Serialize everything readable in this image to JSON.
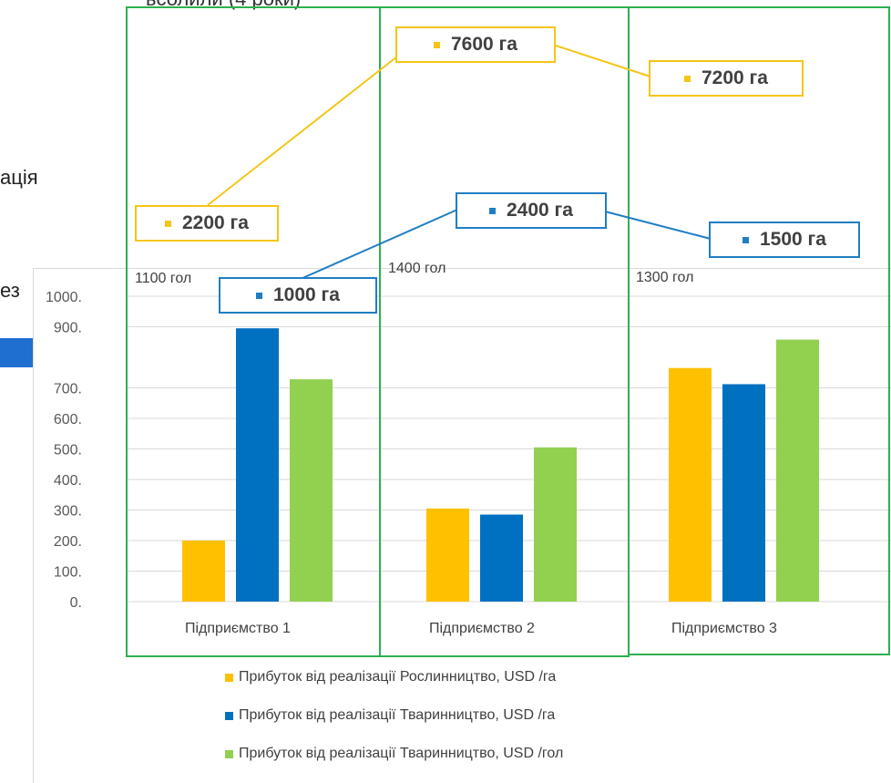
{
  "header": {
    "cut_title": "ьсолили (4 роки)"
  },
  "background": {
    "fragment_1": "ація",
    "fragment_2": "ез"
  },
  "colors": {
    "yellow": "#ffc000",
    "blue": "#0070c0",
    "green": "#92d050",
    "frame": "#2db04f",
    "callout_yellow": "#f5c518",
    "callout_blue": "#1f7ec2"
  },
  "chart_data": {
    "type": "bar",
    "categories": [
      "Підприємство 1",
      "Підприємство 2",
      "Підприємство 3"
    ],
    "series": [
      {
        "name": "Прибуток від реалізації Рослинництво, USD /га",
        "values": [
          200,
          305,
          765
        ]
      },
      {
        "name": "Прибуток від реалізації  Тваринництво, USD /га",
        "values": [
          895,
          285,
          712
        ]
      },
      {
        "name": "Прибуток від реалізації  Тваринництво, USD /гол",
        "values": [
          728,
          505,
          858
        ]
      }
    ],
    "y_tick_labels": [
      "1000.",
      "900.",
      "700.",
      "600.",
      "500.",
      "400.",
      "300.",
      "200.",
      "100.",
      "0."
    ],
    "y_tick_values": [
      1000,
      900,
      700,
      600,
      500,
      400,
      300,
      200,
      100,
      0
    ],
    "ylim": [
      0,
      1000
    ],
    "grid": true,
    "legend_position": "bottom"
  },
  "annotations": {
    "heads": [
      "1100 гол",
      "1400 гол",
      "1300 гол"
    ],
    "crop_area": [
      "2200 га",
      "7600 га",
      "7200 га"
    ],
    "livestock_area": [
      "1000 га",
      "2400 га",
      "1500 га"
    ]
  }
}
